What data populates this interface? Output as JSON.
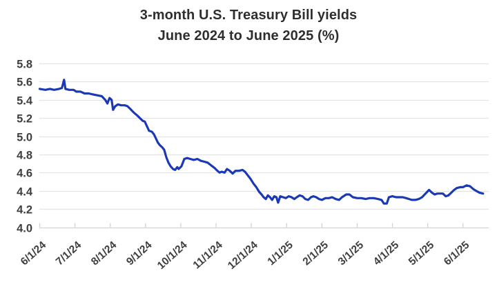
{
  "chart_data": {
    "type": "line",
    "title": "3-month U.S. Treasury Bill yields June 2024 to June 2025 (%)",
    "title_line1": "3-month U.S. Treasury Bill yields",
    "title_line2": "June 2024 to June 2025 (%)",
    "xlabel": "",
    "ylabel": "",
    "ylim": [
      4.0,
      5.8
    ],
    "y_ticks": [
      5.8,
      5.6,
      5.4,
      5.2,
      5.0,
      4.8,
      4.6,
      4.4,
      4.2,
      4.0
    ],
    "x_tick_labels": [
      "6/1/24",
      "7/1/24",
      "8/1/24",
      "9/1/24",
      "10/1/24",
      "11/1/24",
      "12/1/24",
      "1/1/25",
      "2/1/25",
      "3/1/25",
      "4/1/25",
      "5/1/25",
      "6/1/25"
    ],
    "x_unit": "months_since_2024-06-01",
    "x_range": [
      0,
      12.6
    ],
    "grid": "horizontal",
    "legend": "none",
    "series": [
      {
        "name": "3-month U.S. Treasury Bill yield (%)",
        "color": "#1b39b4",
        "points": [
          [
            0.0,
            5.52
          ],
          [
            0.16,
            5.51
          ],
          [
            0.29,
            5.52
          ],
          [
            0.41,
            5.51
          ],
          [
            0.55,
            5.52
          ],
          [
            0.63,
            5.53
          ],
          [
            0.69,
            5.62
          ],
          [
            0.73,
            5.52
          ],
          [
            0.84,
            5.51
          ],
          [
            0.96,
            5.51
          ],
          [
            1.04,
            5.49
          ],
          [
            1.16,
            5.49
          ],
          [
            1.27,
            5.47
          ],
          [
            1.39,
            5.47
          ],
          [
            1.51,
            5.46
          ],
          [
            1.63,
            5.45
          ],
          [
            1.76,
            5.44
          ],
          [
            1.86,
            5.4
          ],
          [
            1.92,
            5.36
          ],
          [
            1.98,
            5.42
          ],
          [
            2.04,
            5.4
          ],
          [
            2.08,
            5.29
          ],
          [
            2.14,
            5.33
          ],
          [
            2.22,
            5.35
          ],
          [
            2.31,
            5.34
          ],
          [
            2.41,
            5.34
          ],
          [
            2.49,
            5.33
          ],
          [
            2.57,
            5.3
          ],
          [
            2.67,
            5.26
          ],
          [
            2.76,
            5.23
          ],
          [
            2.84,
            5.2
          ],
          [
            2.92,
            5.17
          ],
          [
            2.98,
            5.16
          ],
          [
            3.04,
            5.11
          ],
          [
            3.1,
            5.06
          ],
          [
            3.18,
            5.05
          ],
          [
            3.24,
            5.02
          ],
          [
            3.29,
            4.98
          ],
          [
            3.35,
            4.93
          ],
          [
            3.41,
            4.9
          ],
          [
            3.47,
            4.88
          ],
          [
            3.53,
            4.85
          ],
          [
            3.59,
            4.77
          ],
          [
            3.65,
            4.71
          ],
          [
            3.71,
            4.67
          ],
          [
            3.78,
            4.64
          ],
          [
            3.84,
            4.63
          ],
          [
            3.9,
            4.66
          ],
          [
            3.94,
            4.64
          ],
          [
            4.02,
            4.67
          ],
          [
            4.1,
            4.75
          ],
          [
            4.18,
            4.76
          ],
          [
            4.27,
            4.75
          ],
          [
            4.37,
            4.74
          ],
          [
            4.47,
            4.75
          ],
          [
            4.57,
            4.73
          ],
          [
            4.67,
            4.72
          ],
          [
            4.76,
            4.71
          ],
          [
            4.86,
            4.68
          ],
          [
            4.96,
            4.65
          ],
          [
            5.04,
            4.62
          ],
          [
            5.1,
            4.6
          ],
          [
            5.16,
            4.61
          ],
          [
            5.24,
            4.6
          ],
          [
            5.31,
            4.64
          ],
          [
            5.39,
            4.62
          ],
          [
            5.47,
            4.59
          ],
          [
            5.55,
            4.62
          ],
          [
            5.65,
            4.62
          ],
          [
            5.75,
            4.63
          ],
          [
            5.82,
            4.61
          ],
          [
            5.9,
            4.57
          ],
          [
            5.98,
            4.53
          ],
          [
            6.06,
            4.48
          ],
          [
            6.14,
            4.44
          ],
          [
            6.22,
            4.39
          ],
          [
            6.29,
            4.36
          ],
          [
            6.35,
            4.33
          ],
          [
            6.41,
            4.31
          ],
          [
            6.47,
            4.35
          ],
          [
            6.53,
            4.33
          ],
          [
            6.59,
            4.3
          ],
          [
            6.65,
            4.34
          ],
          [
            6.71,
            4.33
          ],
          [
            6.76,
            4.27
          ],
          [
            6.82,
            4.34
          ],
          [
            6.9,
            4.33
          ],
          [
            6.98,
            4.32
          ],
          [
            7.06,
            4.34
          ],
          [
            7.14,
            4.33
          ],
          [
            7.22,
            4.31
          ],
          [
            7.29,
            4.33
          ],
          [
            7.37,
            4.35
          ],
          [
            7.45,
            4.34
          ],
          [
            7.53,
            4.31
          ],
          [
            7.61,
            4.3
          ],
          [
            7.69,
            4.33
          ],
          [
            7.76,
            4.34
          ],
          [
            7.84,
            4.33
          ],
          [
            7.92,
            4.31
          ],
          [
            8.0,
            4.3
          ],
          [
            8.1,
            4.32
          ],
          [
            8.2,
            4.32
          ],
          [
            8.29,
            4.33
          ],
          [
            8.39,
            4.31
          ],
          [
            8.49,
            4.3
          ],
          [
            8.57,
            4.33
          ],
          [
            8.69,
            4.36
          ],
          [
            8.78,
            4.36
          ],
          [
            8.88,
            4.33
          ],
          [
            9.0,
            4.32
          ],
          [
            9.12,
            4.32
          ],
          [
            9.24,
            4.31
          ],
          [
            9.35,
            4.32
          ],
          [
            9.47,
            4.32
          ],
          [
            9.59,
            4.31
          ],
          [
            9.69,
            4.3
          ],
          [
            9.76,
            4.26
          ],
          [
            9.84,
            4.26
          ],
          [
            9.9,
            4.33
          ],
          [
            10.0,
            4.34
          ],
          [
            10.1,
            4.33
          ],
          [
            10.2,
            4.33
          ],
          [
            10.29,
            4.33
          ],
          [
            10.39,
            4.32
          ],
          [
            10.47,
            4.31
          ],
          [
            10.55,
            4.3
          ],
          [
            10.65,
            4.3
          ],
          [
            10.75,
            4.31
          ],
          [
            10.84,
            4.33
          ],
          [
            10.94,
            4.37
          ],
          [
            11.04,
            4.41
          ],
          [
            11.12,
            4.38
          ],
          [
            11.2,
            4.36
          ],
          [
            11.27,
            4.37
          ],
          [
            11.35,
            4.37
          ],
          [
            11.43,
            4.37
          ],
          [
            11.51,
            4.34
          ],
          [
            11.59,
            4.35
          ],
          [
            11.67,
            4.38
          ],
          [
            11.75,
            4.41
          ],
          [
            11.82,
            4.43
          ],
          [
            11.92,
            4.44
          ],
          [
            12.0,
            4.44
          ],
          [
            12.1,
            4.46
          ],
          [
            12.2,
            4.45
          ],
          [
            12.29,
            4.42
          ],
          [
            12.37,
            4.4
          ],
          [
            12.47,
            4.38
          ],
          [
            12.57,
            4.37
          ]
        ]
      }
    ]
  },
  "style": {
    "line_color": "#1b39b4",
    "grid_color": "#e3e3e3",
    "axis_color": "#d2d2d2",
    "label_color": "#3f3f3f",
    "title_color": "#2e2e2e",
    "background": "#ffffff"
  }
}
